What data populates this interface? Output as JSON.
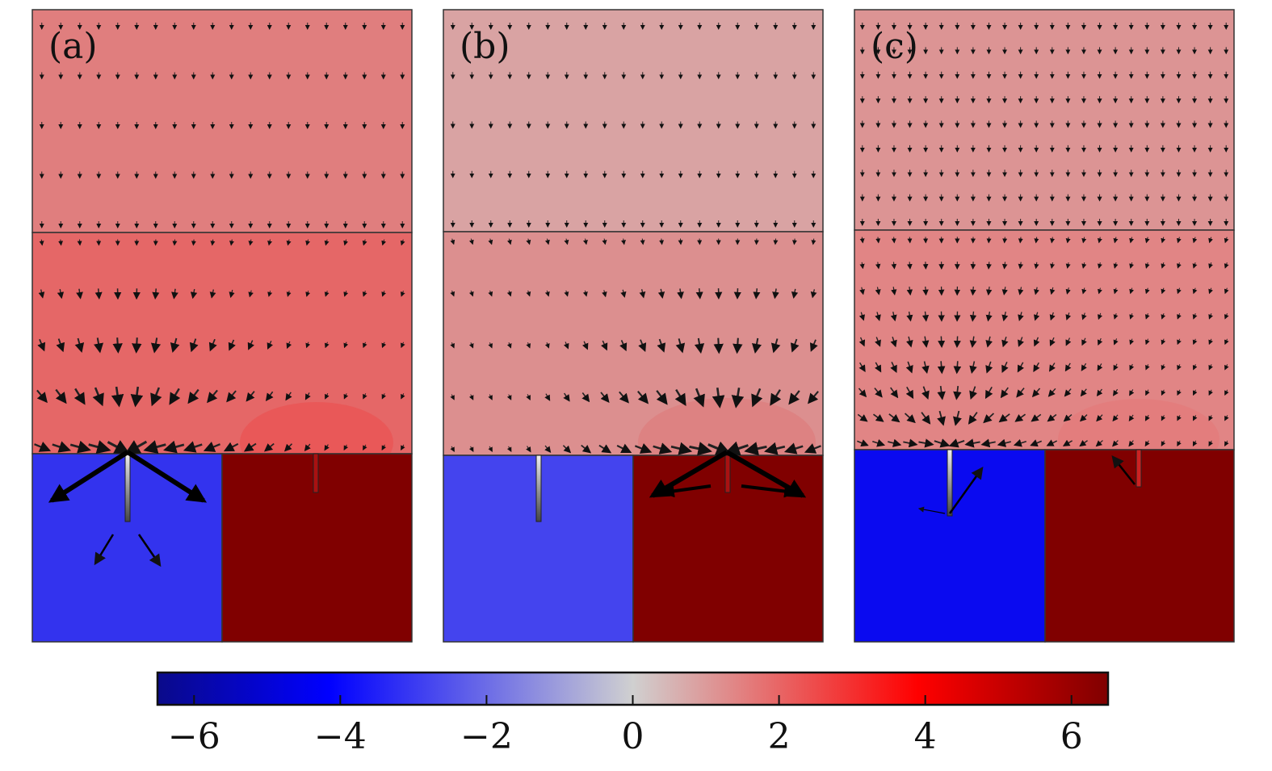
{
  "panels": [
    {
      "label": "(a)",
      "colors": {
        "top_layer": "#e07e7e",
        "mid_layer": "#e56767",
        "left_block": "#3333ee",
        "right_block": "#800000"
      },
      "hotspot_color": "#ee4848",
      "note": "converging field arrows into left electrode with large outgoing arrows in blue block"
    },
    {
      "label": "(b)",
      "colors": {
        "top_layer": "#d9a3a3",
        "mid_layer": "#dc8f8f",
        "left_block": "#4444ee",
        "right_block": "#800000"
      },
      "hotspot_color": "#e06a6a",
      "note": "converging field arrows into right electrode with large outgoing arrows in dark red block"
    },
    {
      "label": "(c)",
      "colors": {
        "top_layer": "#dc9494",
        "mid_layer": "#e18585",
        "left_block": "#0a0af0",
        "right_block": "#800000"
      },
      "hotspot_color": "#e77070",
      "note": "weak fields with small arrows at both electrodes"
    }
  ],
  "colorbar": {
    "min": -6.5,
    "max": 6.5,
    "gradient": [
      "#0a0a8a",
      "#0000ff",
      "#d0d0d0",
      "#ff0000",
      "#800000"
    ],
    "ticks": [
      -6,
      -4,
      -2,
      0,
      2,
      4,
      6
    ],
    "tick_labels": [
      "−6",
      "−4",
      "−2",
      "0",
      "2",
      "4",
      "6"
    ]
  }
}
